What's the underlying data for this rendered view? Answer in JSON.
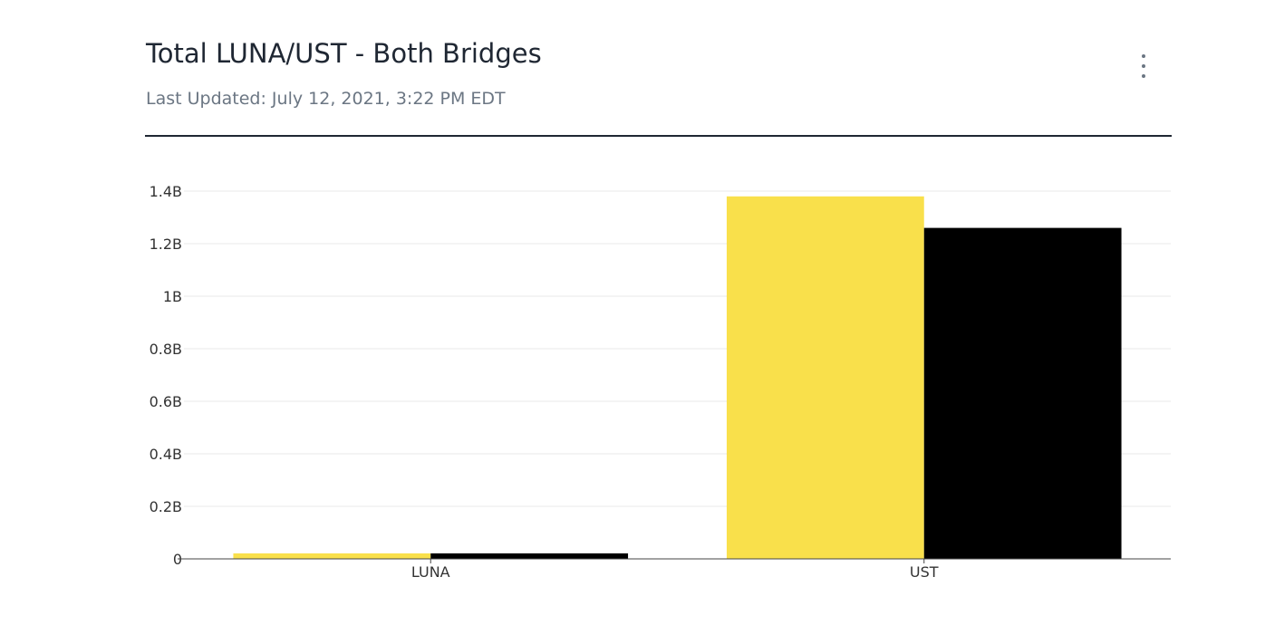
{
  "header": {
    "title": "Total LUNA/UST - Both Bridges",
    "last_updated": "Last Updated: July 12, 2021, 3:22 PM EDT",
    "menu_icon": "vertical-ellipsis-icon"
  },
  "colors": {
    "series_1": "#f9e04b",
    "series_2": "#000000",
    "grid": "#e8e8e8",
    "axis": "#444444"
  },
  "chart_data": {
    "type": "bar",
    "categories": [
      "LUNA",
      "UST"
    ],
    "series": [
      {
        "values": [
          0.021,
          1.38
        ]
      },
      {
        "values": [
          0.021,
          1.26
        ]
      }
    ],
    "ylim": [
      0,
      1.4
    ],
    "yticks": [
      0,
      0.2,
      0.4,
      0.6,
      0.8,
      1,
      1.2,
      1.4
    ],
    "ytick_labels": [
      "0",
      "0.2B",
      "0.4B",
      "0.6B",
      "0.8B",
      "1B",
      "1.2B",
      "1.4B"
    ],
    "unit": "B",
    "grid": true,
    "legend": false,
    "xlabel": "",
    "ylabel": ""
  }
}
